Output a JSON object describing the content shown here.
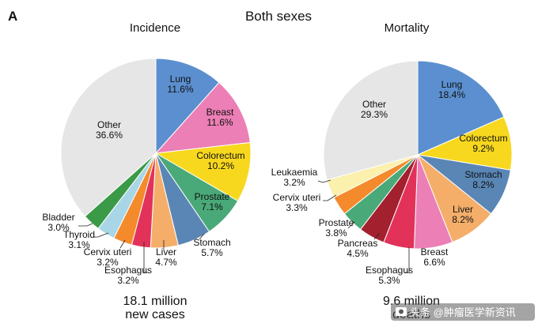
{
  "figure": {
    "panel_label": "A",
    "title": "Both sexes",
    "watermark": "头条 @肿瘤医学新资讯",
    "watermark_icon": "camera-icon"
  },
  "chart_data": [
    {
      "type": "pie",
      "title": "Incidence",
      "footer_lines": [
        "18.1 million",
        "new cases"
      ],
      "slices": [
        {
          "name": "Lung",
          "value": 11.6,
          "label": "11.6%",
          "color": "#5b8fcf"
        },
        {
          "name": "Breast",
          "value": 11.6,
          "label": "11.6%",
          "color": "#ec7fb5"
        },
        {
          "name": "Colorectum",
          "value": 10.2,
          "label": "10.2%",
          "color": "#f7d81e"
        },
        {
          "name": "Prostate",
          "value": 7.1,
          "label": "7.1%",
          "color": "#4aa978"
        },
        {
          "name": "Stomach",
          "value": 5.7,
          "label": "5.7%",
          "color": "#5a86b6"
        },
        {
          "name": "Liver",
          "value": 4.7,
          "label": "4.7%",
          "color": "#f4ae6a"
        },
        {
          "name": "Esophagus",
          "value": 3.2,
          "label": "3.2%",
          "color": "#e2325a"
        },
        {
          "name": "Cervix uteri",
          "value": 3.2,
          "label": "3.2%",
          "color": "#f48a2c"
        },
        {
          "name": "Thyroid",
          "value": 3.1,
          "label": "3.1%",
          "color": "#a9d6e6"
        },
        {
          "name": "Bladder",
          "value": 3.0,
          "label": "3.0%",
          "color": "#3b9a47"
        },
        {
          "name": "Other",
          "value": 36.6,
          "label": "36.6%",
          "color": "#e6e6e6"
        }
      ]
    },
    {
      "type": "pie",
      "title": "Mortality",
      "footer_lines": [
        "9.6 million",
        "deaths"
      ],
      "slices": [
        {
          "name": "Lung",
          "value": 18.4,
          "label": "18.4%",
          "color": "#5b8fcf"
        },
        {
          "name": "Colorectum",
          "value": 9.2,
          "label": "9.2%",
          "color": "#f7d81e"
        },
        {
          "name": "Stomach",
          "value": 8.2,
          "label": "8.2%",
          "color": "#5a86b6"
        },
        {
          "name": "Liver",
          "value": 8.2,
          "label": "8.2%",
          "color": "#f4ae6a"
        },
        {
          "name": "Breast",
          "value": 6.6,
          "label": "6.6%",
          "color": "#ec7fb5"
        },
        {
          "name": "Esophagus",
          "value": 5.3,
          "label": "5.3%",
          "color": "#e2325a"
        },
        {
          "name": "Pancreas",
          "value": 4.5,
          "label": "4.5%",
          "color": "#a3202e"
        },
        {
          "name": "Prostate",
          "value": 3.8,
          "label": "3.8%",
          "color": "#4aa978"
        },
        {
          "name": "Cervix uteri",
          "value": 3.3,
          "label": "3.3%",
          "color": "#f48a2c"
        },
        {
          "name": "Leukaemia",
          "value": 3.2,
          "label": "3.2%",
          "color": "#fbf0ac"
        },
        {
          "name": "Other",
          "value": 29.3,
          "label": "29.3%",
          "color": "#e6e6e6"
        }
      ]
    }
  ]
}
